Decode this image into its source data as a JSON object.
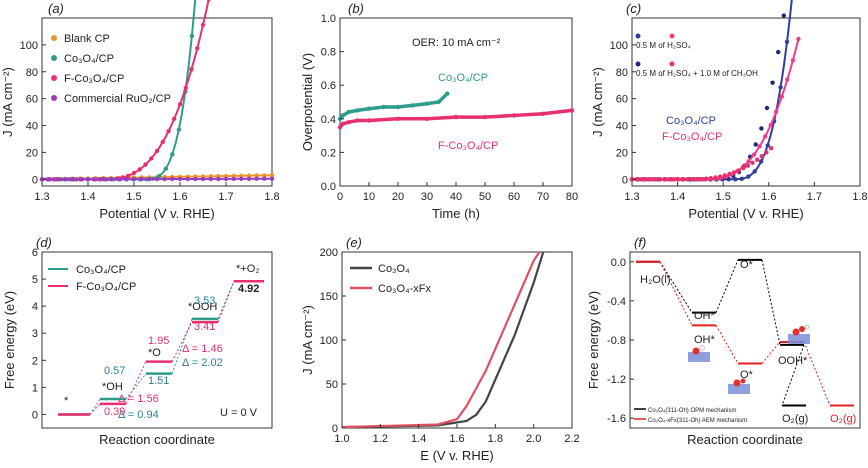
{
  "panels": [
    {
      "id": "a",
      "label": "(a)",
      "type": "line",
      "xlabel": "Potential (V v. RHE)",
      "ylabel": "J (mA cm⁻²)",
      "xlim": [
        1.3,
        1.8
      ],
      "ylim": [
        -5,
        120
      ],
      "xticks": [
        "1.3",
        "1.4",
        "1.5",
        "1.6",
        "1.7",
        "1.8"
      ],
      "yticks": [
        "0",
        "20",
        "40",
        "60",
        "80",
        "100"
      ],
      "series": [
        {
          "name": "Blank CP",
          "color": "#f0952c",
          "onset": 1.3,
          "end": 1.8,
          "k": 0,
          "p": 1,
          "lin": 3,
          "marks": true
        },
        {
          "name": "Co₃O₄/CP",
          "color": "#2e9c8c",
          "onset": 1.52,
          "end": 1.725,
          "k": 3.5,
          "p": 3.4,
          "lin": 0,
          "marks": true
        },
        {
          "name": "F-Co₃O₄/CP",
          "color": "#e8306c",
          "onset": 1.43,
          "end": 1.675,
          "k": 2.0,
          "p": 2.8,
          "lin": 0,
          "marks": true
        },
        {
          "name": "Commercial RuO₂/CP",
          "color": "#9a3dc4",
          "onset": 1.38,
          "end": 1.8,
          "k": 0.35,
          "p": 1.3,
          "lin": 0,
          "marks": true
        }
      ]
    },
    {
      "id": "b",
      "label": "(b)",
      "type": "line",
      "xlabel": "Time (h)",
      "ylabel": "Overpotential (V)",
      "xlim": [
        0,
        80
      ],
      "ylim": [
        0,
        1.0
      ],
      "xticks": [
        "0",
        "10",
        "20",
        "30",
        "40",
        "50",
        "60",
        "70",
        "80"
      ],
      "yticks": [
        "0.0",
        "0.2",
        "0.4",
        "0.6",
        "0.8",
        "1.0"
      ],
      "annotation": "OER: 10 mA cm⁻²",
      "series": [
        {
          "name": "Co₃O₄/CP",
          "color": "#2e9c8c",
          "x": [
            0,
            1,
            3,
            6,
            10,
            15,
            20,
            25,
            30,
            34,
            37
          ],
          "y": [
            0.4,
            0.42,
            0.44,
            0.45,
            0.46,
            0.47,
            0.47,
            0.48,
            0.49,
            0.5,
            0.55
          ]
        },
        {
          "name": "F-Co₃O₄/CP",
          "color": "#e8306c",
          "x": [
            0,
            1,
            3,
            6,
            10,
            20,
            30,
            40,
            50,
            60,
            70,
            80
          ],
          "y": [
            0.35,
            0.37,
            0.38,
            0.39,
            0.39,
            0.4,
            0.4,
            0.41,
            0.41,
            0.42,
            0.43,
            0.45
          ]
        }
      ]
    },
    {
      "id": "c",
      "label": "(c)",
      "type": "line",
      "xlabel": "Potential (V v. RHE)",
      "ylabel": "J (mA cm⁻²)",
      "xlim": [
        1.3,
        1.8
      ],
      "ylim": [
        -5,
        120
      ],
      "xticks": [
        "1.3",
        "1.4",
        "1.5",
        "1.6",
        "1.7",
        "1.8"
      ],
      "yticks": [
        "0",
        "20",
        "40",
        "60",
        "80",
        "100"
      ],
      "legend": [
        "0.5 M of H₂SO₄",
        "0.5 M of H₂SO₄ + 1.0 M of CH₃OH"
      ],
      "labels": [
        "Co₃O₄/CP",
        "F-Co₃O₄/CP"
      ],
      "series": [
        {
          "name": "Co₃O₄/CP 0.5 M of H₂SO₄",
          "color": "#2e3fa0",
          "onset": 1.52,
          "end": 1.725,
          "k": 3.6,
          "p": 3.2,
          "lin": 0
        },
        {
          "name": "Co₃O₄/CP 0.5 M of H₂SO₄ + 1.0 M of CH₃OH",
          "color": "#1c2a7a",
          "onset": 1.48,
          "end": 1.67,
          "k": 3.4,
          "p": 3.0,
          "lin": 0
        },
        {
          "name": "F-Co₃O₄/CP 0.5 M of H₂SO₄",
          "color": "#ee3d8a",
          "onset": 1.46,
          "end": 1.665,
          "k": 3.0,
          "p": 2.7,
          "lin": 0
        },
        {
          "name": "F-Co₃O₄/CP 0.5 M of H₂SO₄ + 1.0 M of CH₃OH",
          "color": "#e8306c",
          "onset": 1.43,
          "end": 1.605,
          "k": 2.4,
          "p": 2.4,
          "lin": 0
        }
      ]
    },
    {
      "id": "d",
      "label": "(d)",
      "type": "free-energy",
      "xlabel": "Reaction coordinate",
      "ylabel": "Free energy (eV)",
      "ylim": [
        -0.5,
        6
      ],
      "yticks": [
        "0",
        "1",
        "2",
        "3",
        "4",
        "5",
        "6"
      ],
      "condition": "U = 0 V",
      "steps": [
        "*",
        "*OH",
        "*O",
        "*OOH",
        "*+O₂"
      ],
      "series": [
        {
          "name": "Co₃O₄/CP",
          "color": "#2e9c8c",
          "values": [
            0,
            0.57,
            1.51,
            3.53,
            4.92
          ]
        },
        {
          "name": "F-Co₃O₄/CP",
          "color": "#e8306c",
          "values": [
            0,
            0.39,
            1.95,
            3.41,
            4.92
          ]
        }
      ],
      "value_labels": [
        "0.57",
        "0.39",
        "1.95",
        "1.51",
        "3.53",
        "3.41",
        "4.92"
      ],
      "delta_labels": [
        "Δ = 1.56",
        "Δ = 0.94",
        "Δ = 1.46",
        "Δ = 2.02"
      ]
    },
    {
      "id": "e",
      "label": "(e)",
      "type": "line",
      "xlabel": "E (V v. RHE)",
      "ylabel": "J (mA cm⁻²)",
      "xlim": [
        1.0,
        2.2
      ],
      "ylim": [
        0,
        200
      ],
      "xticks": [
        "1.0",
        "1.2",
        "1.4",
        "1.6",
        "1.8",
        "2.0",
        "2.2"
      ],
      "yticks": [
        "0",
        "50",
        "100",
        "150",
        "200"
      ],
      "series": [
        {
          "name": "Co₃O₄",
          "color": "#444444",
          "x": [
            1.0,
            1.5,
            1.65,
            1.7,
            1.75,
            1.8,
            1.85,
            1.9,
            1.95,
            2.0,
            2.05
          ],
          "y": [
            1,
            3,
            8,
            15,
            30,
            55,
            80,
            105,
            135,
            165,
            200
          ]
        },
        {
          "name": "Co₃O₄-xFx",
          "color": "#e05060",
          "x": [
            1.0,
            1.5,
            1.6,
            1.65,
            1.7,
            1.75,
            1.8,
            1.85,
            1.9,
            1.95,
            2.0,
            2.03
          ],
          "y": [
            1,
            4,
            10,
            25,
            45,
            65,
            90,
            115,
            140,
            165,
            190,
            200
          ]
        }
      ]
    },
    {
      "id": "f",
      "label": "(f)",
      "type": "free-energy",
      "xlabel": "Reaction coordinate",
      "ylabel": "Free energy (eV)",
      "ylim": [
        -1.7,
        0.1
      ],
      "yticks": [
        "0.0",
        "-0.4",
        "-0.8",
        "-1.2",
        "-1.6"
      ],
      "series": [
        {
          "name": "Co₃O₄(311-Oh) OPM mechanism",
          "color": "#000000",
          "values": [
            0,
            -0.52,
            0.02,
            -0.85,
            -1.47
          ]
        },
        {
          "name": "Co₃O₄-xFx(311-Oh) AEM mechanism",
          "color": "#e02020",
          "values": [
            0,
            -0.65,
            -1.04,
            -0.82,
            -1.47
          ]
        }
      ],
      "step_labels": [
        "H₂O(l)",
        "OH*",
        "OH*",
        "O*",
        "O*",
        "OOH*",
        "O₂(g)",
        "O₂(g)"
      ]
    }
  ]
}
